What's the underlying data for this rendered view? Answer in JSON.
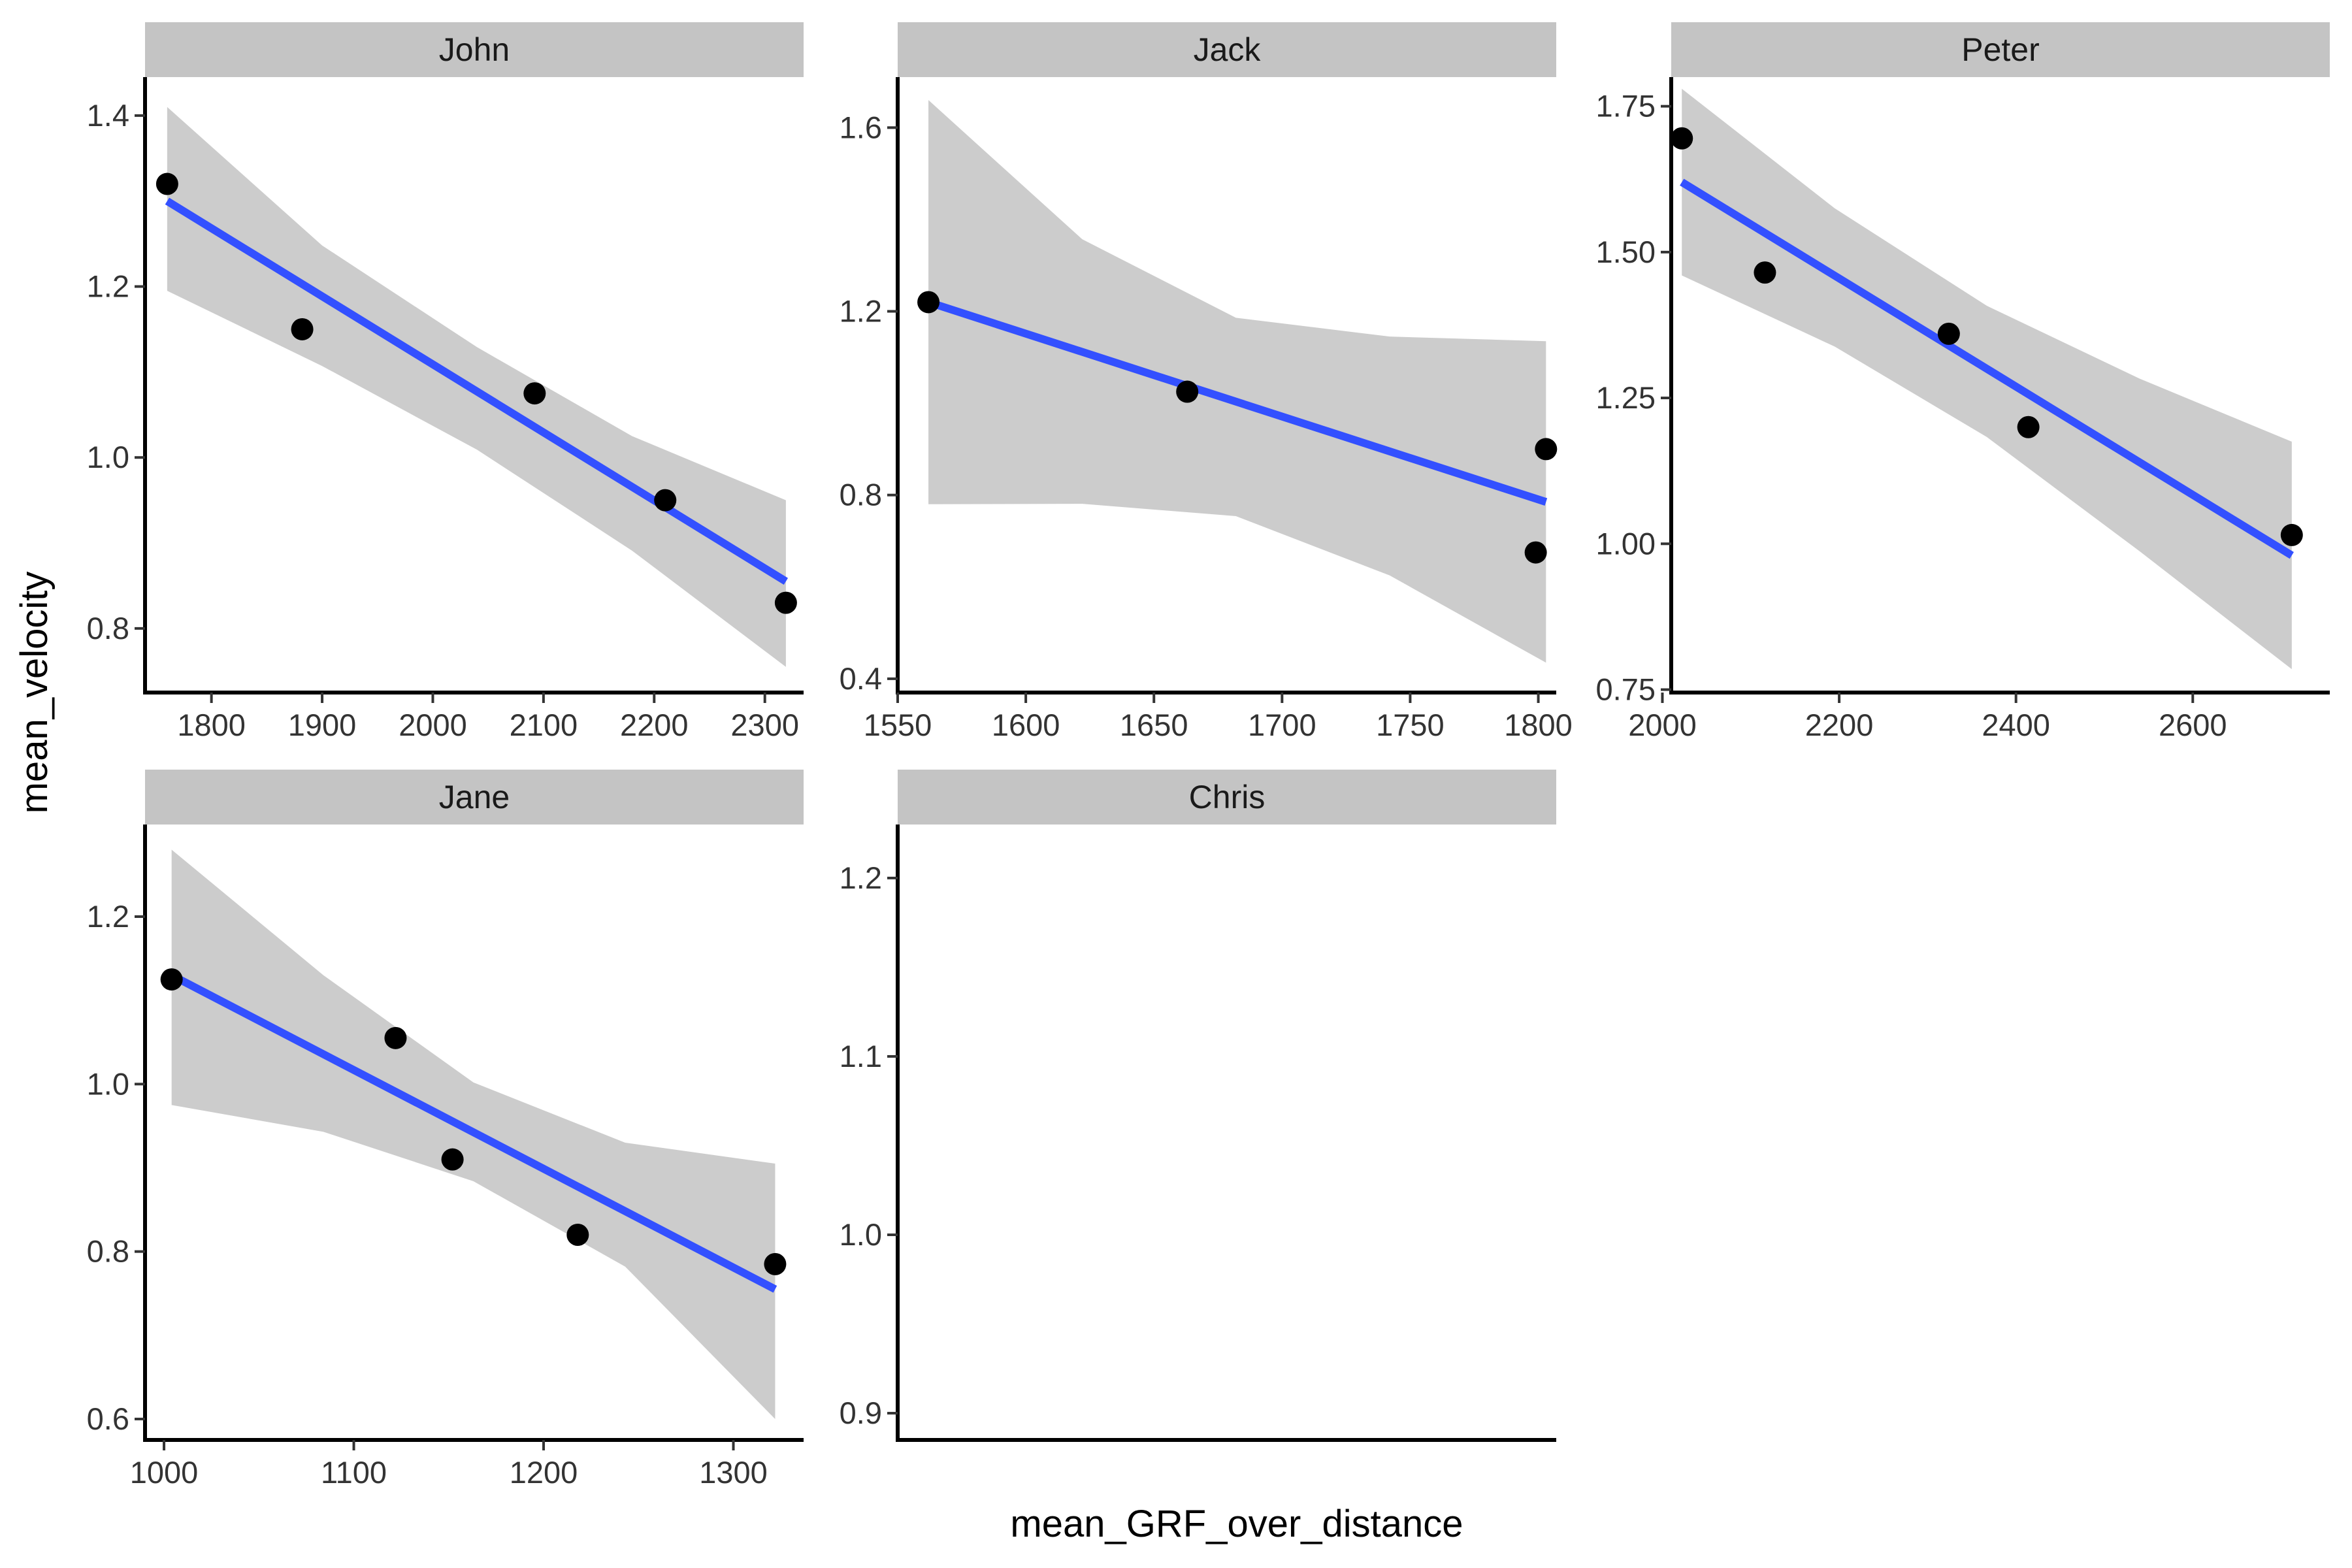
{
  "chart_data": {
    "type": "scatter",
    "xlabel": "mean_GRF_over_distance",
    "ylabel": "mean_velocity",
    "legend": "none",
    "grid": false,
    "colors": {
      "fit_line": "#3350ff",
      "confidence_band": "#cccccc",
      "points": "#000000",
      "strip": "#c4c4c4"
    },
    "panels": [
      {
        "strip_label": "John",
        "xlim": [
          1740,
          2335
        ],
        "ylim": [
          0.725,
          1.445
        ],
        "xticks": [
          1800,
          1900,
          2000,
          2100,
          2200,
          2300
        ],
        "xtick_labels": [
          "1800",
          "1900",
          "2000",
          "2100",
          "2200",
          "2300"
        ],
        "yticks": [
          0.8,
          1.0,
          1.2,
          1.4
        ],
        "ytick_labels": [
          "0.8",
          "1.0",
          "1.2",
          "1.4"
        ],
        "points": [
          {
            "x": 1760,
            "y": 1.32
          },
          {
            "x": 1882,
            "y": 1.15
          },
          {
            "x": 2092,
            "y": 1.075
          },
          {
            "x": 2210,
            "y": 0.95
          },
          {
            "x": 2319,
            "y": 0.83
          }
        ],
        "fit": {
          "x": [
            1760,
            2319
          ],
          "y": [
            1.3,
            0.855
          ]
        },
        "band": {
          "x": [
            1760,
            1900,
            2040,
            2180,
            2319
          ],
          "upper": [
            1.41,
            1.248,
            1.129,
            1.025,
            0.95
          ],
          "lower": [
            1.195,
            1.107,
            1.009,
            0.891,
            0.755
          ]
        }
      },
      {
        "strip_label": "Jack",
        "xlim": [
          1550,
          1807
        ],
        "ylim": [
          0.37,
          1.71
        ],
        "xticks": [
          1550,
          1600,
          1650,
          1700,
          1750,
          1800
        ],
        "xtick_labels": [
          "1550",
          "1600",
          "1650",
          "1700",
          "1750",
          "1800"
        ],
        "yticks": [
          0.4,
          0.8,
          1.2,
          1.6
        ],
        "ytick_labels": [
          "0.4",
          "0.8",
          "1.2",
          "1.6"
        ],
        "points": [
          {
            "x": 1562,
            "y": 1.22
          },
          {
            "x": 1663,
            "y": 1.025
          },
          {
            "x": 1799,
            "y": 0.675
          },
          {
            "x": 1803,
            "y": 0.9
          }
        ],
        "fit": {
          "x": [
            1562,
            1803
          ],
          "y": [
            1.22,
            0.785
          ]
        },
        "band": {
          "x": [
            1562,
            1622,
            1682,
            1742,
            1803
          ],
          "upper": [
            1.66,
            1.357,
            1.186,
            1.145,
            1.135
          ],
          "lower": [
            0.78,
            0.781,
            0.754,
            0.625,
            0.435
          ]
        }
      },
      {
        "strip_label": "Peter",
        "xlim": [
          2010,
          2755
        ],
        "ylim": [
          0.745,
          1.8
        ],
        "xticks": [
          2000,
          2200,
          2400,
          2600
        ],
        "xtick_labels": [
          "2000",
          "2200",
          "2400",
          "2600"
        ],
        "yticks": [
          0.75,
          1.0,
          1.25,
          1.5,
          1.75
        ],
        "ytick_labels": [
          "0.75",
          "1.00",
          "1.25",
          "1.50",
          "1.75"
        ],
        "points": [
          {
            "x": 2022,
            "y": 1.695
          },
          {
            "x": 2116,
            "y": 1.465
          },
          {
            "x": 2324,
            "y": 1.36
          },
          {
            "x": 2414,
            "y": 1.2
          },
          {
            "x": 2712,
            "y": 1.015
          }
        ],
        "fit": {
          "x": [
            2022,
            2712
          ],
          "y": [
            1.62,
            0.98
          ]
        },
        "band": {
          "x": [
            2022,
            2195,
            2367,
            2540,
            2712
          ],
          "upper": [
            1.78,
            1.575,
            1.408,
            1.283,
            1.175
          ],
          "lower": [
            1.46,
            1.338,
            1.183,
            0.987,
            0.785
          ]
        }
      },
      {
        "strip_label": "Jane",
        "xlim": [
          990,
          1337
        ],
        "ylim": [
          0.575,
          1.31
        ],
        "xticks": [
          1000,
          1100,
          1200,
          1300
        ],
        "xtick_labels": [
          "1000",
          "1100",
          "1200",
          "1300"
        ],
        "yticks": [
          0.6,
          0.8,
          1.0,
          1.2
        ],
        "ytick_labels": [
          "0.6",
          "0.8",
          "1.0",
          "1.2"
        ],
        "points": [
          {
            "x": 1004,
            "y": 1.125
          },
          {
            "x": 1122,
            "y": 1.055
          },
          {
            "x": 1152,
            "y": 0.91
          },
          {
            "x": 1218,
            "y": 0.82
          },
          {
            "x": 1322,
            "y": 0.785
          }
        ],
        "fit": {
          "x": [
            1004,
            1322
          ],
          "y": [
            1.13,
            0.755
          ]
        },
        "band": {
          "x": [
            1004,
            1084,
            1163,
            1243,
            1322
          ],
          "upper": [
            1.28,
            1.13,
            1.002,
            0.93,
            0.905
          ],
          "lower": [
            0.975,
            0.943,
            0.884,
            0.782,
            0.6
          ]
        }
      },
      {
        "strip_label": "Chris",
        "xlim": [
          0,
          1
        ],
        "ylim": [
          0.885,
          1.23
        ],
        "xticks": [],
        "xtick_labels": [],
        "yticks": [
          0.9,
          1.0,
          1.1,
          1.2
        ],
        "ytick_labels": [
          "0.9",
          "1.0",
          "1.1",
          "1.2"
        ],
        "points": [],
        "fit": null,
        "band": null
      }
    ]
  }
}
